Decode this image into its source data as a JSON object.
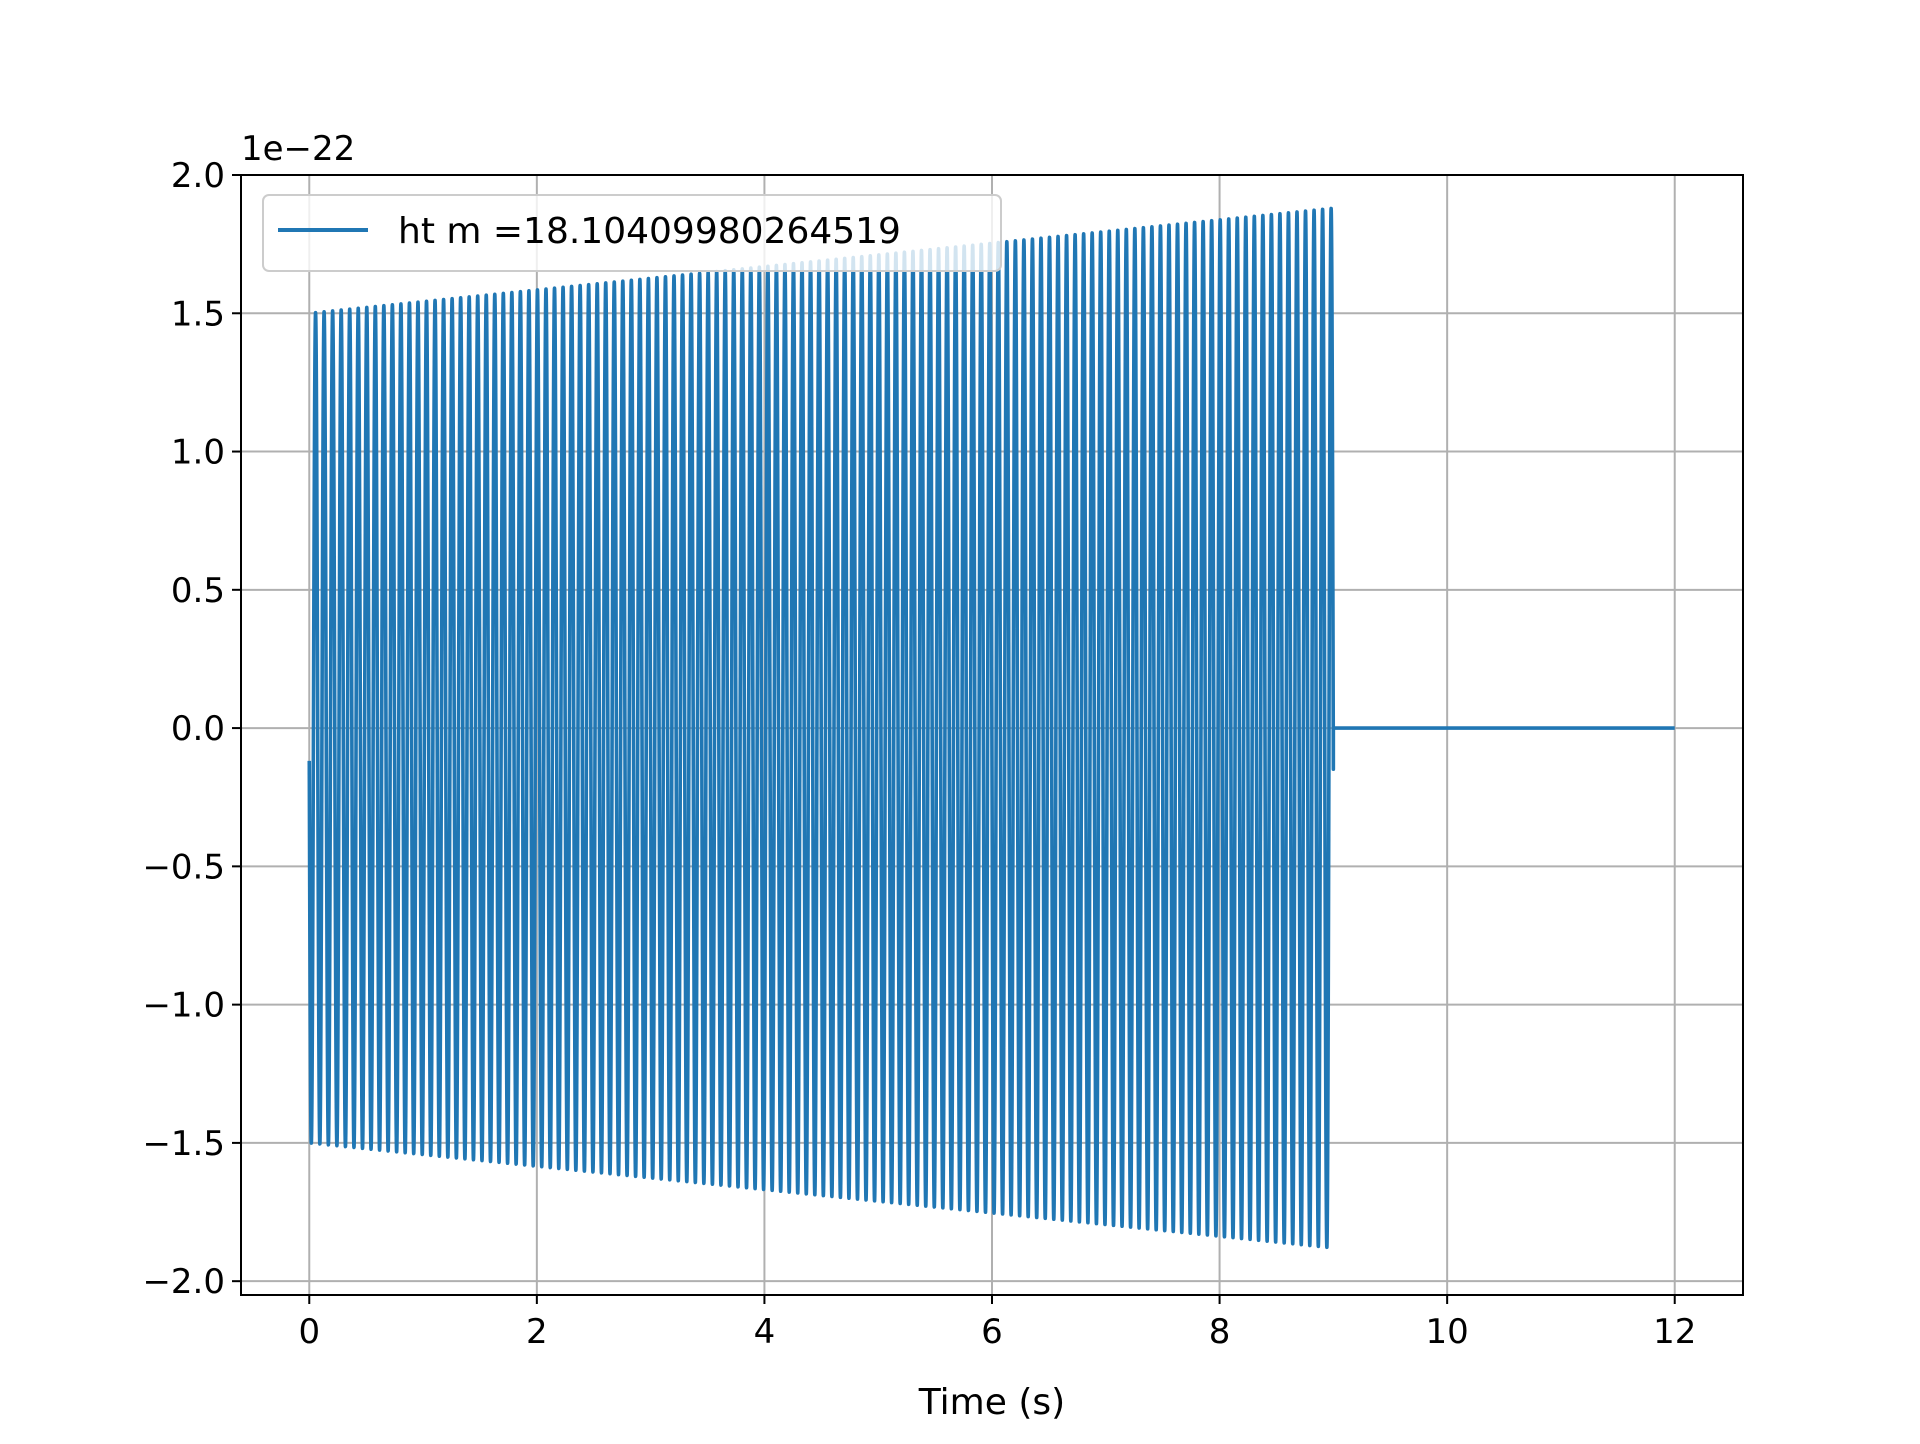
{
  "chart_data": {
    "type": "line",
    "title": "",
    "xlabel": "Time (s)",
    "ylabel": "",
    "y_offset_label": "1e−22",
    "xlim": [
      -0.6,
      12.6
    ],
    "ylim": [
      -2.05,
      2.0
    ],
    "x_ticks": [
      0,
      2,
      4,
      6,
      8,
      10,
      12
    ],
    "x_tick_labels": [
      "0",
      "2",
      "4",
      "6",
      "8",
      "10",
      "12"
    ],
    "y_ticks": [
      -2.0,
      -1.5,
      -1.0,
      -0.5,
      0.0,
      0.5,
      1.0,
      1.5,
      2.0
    ],
    "y_tick_labels": [
      "−2.0",
      "−1.5",
      "−1.0",
      "−0.5",
      "0.0",
      "0.5",
      "1.0",
      "1.5",
      "2.0"
    ],
    "grid": true,
    "legend_position": "upper-left",
    "series": [
      {
        "name": "ht m =18.10409980264519",
        "color": "#2077b4",
        "signal": {
          "start": 0.0,
          "signal_end": 9.0,
          "end": 12.0,
          "amplitude_start": 1.5,
          "amplitude_end": 1.88,
          "cycles": 120,
          "value_after_end": 0.0
        }
      }
    ]
  }
}
